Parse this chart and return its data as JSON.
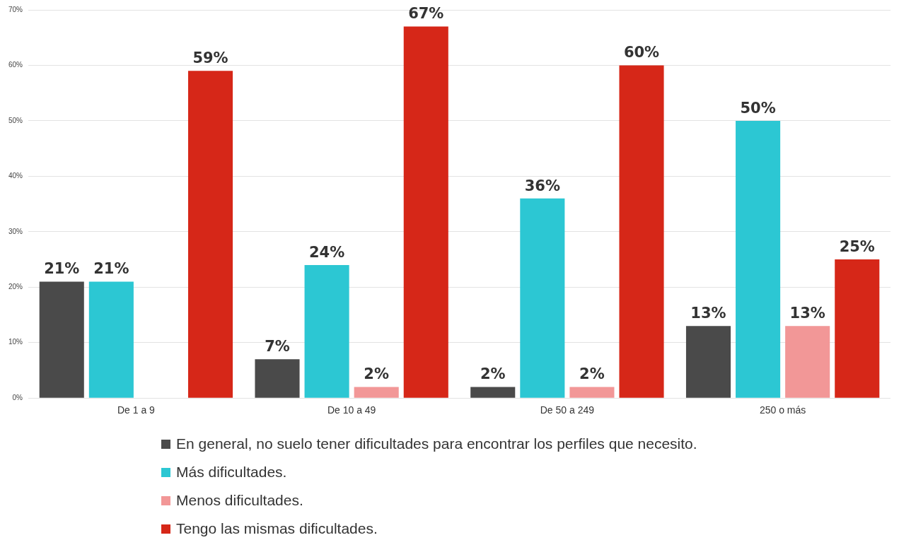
{
  "chart_data": {
    "type": "bar",
    "categories": [
      "De 1 a 9",
      "De 10 a 49",
      "De 50 a 249",
      "250 o más"
    ],
    "series": [
      {
        "name": "En general, no suelo tener dificultades para encontrar los perfiles que necesito.",
        "color": "#4a4a4a",
        "values": [
          21,
          7,
          2,
          13
        ],
        "value_labels": [
          "21%",
          "7%",
          "2%",
          "13%"
        ]
      },
      {
        "name": "Más dificultades.",
        "color": "#2cc7d3",
        "values": [
          21,
          24,
          36,
          50
        ],
        "value_labels": [
          "21%",
          "24%",
          "36%",
          "50%"
        ]
      },
      {
        "name": "Menos dificultades.",
        "color": "#f29797",
        "values": [
          null,
          2,
          2,
          13
        ],
        "value_labels": [
          null,
          "2%",
          "2%",
          "13%"
        ]
      },
      {
        "name": "Tengo las mismas dificultades.",
        "color": "#d62718",
        "values": [
          59,
          67,
          60,
          25
        ],
        "value_labels": [
          "59%",
          "67%",
          "60%",
          "25%"
        ]
      }
    ],
    "ylim": [
      0,
      70
    ],
    "yticks": [
      {
        "value": 0,
        "label": "0%"
      },
      {
        "value": 10,
        "label": "10%"
      },
      {
        "value": 20,
        "label": "20%"
      },
      {
        "value": 30,
        "label": "30%"
      },
      {
        "value": 40,
        "label": "40%"
      },
      {
        "value": 50,
        "label": "50%"
      },
      {
        "value": 60,
        "label": "60%"
      },
      {
        "value": 70,
        "label": "70%"
      }
    ],
    "grid": "y",
    "legend": "bottom"
  }
}
